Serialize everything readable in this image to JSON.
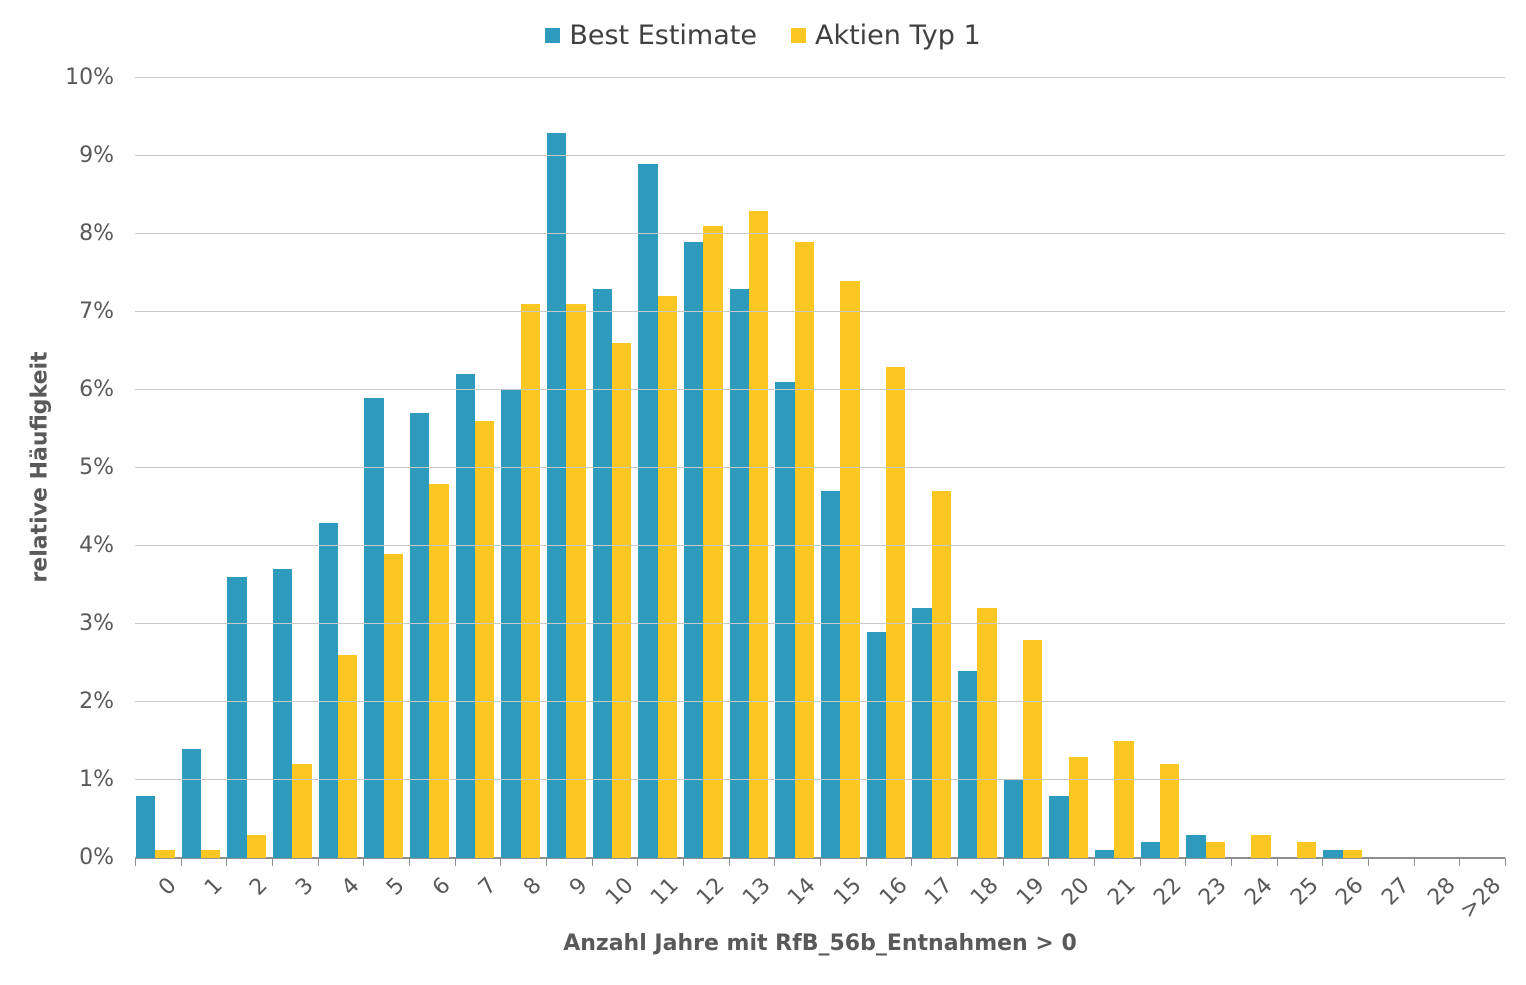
{
  "chart_data": {
    "type": "bar",
    "title": "",
    "xlabel": "Anzahl Jahre mit RfB_56b_Entnahmen > 0",
    "ylabel": "relative Häufigkeit",
    "categories": [
      "0",
      "1",
      "2",
      "3",
      "4",
      "5",
      "6",
      "7",
      "8",
      "9",
      "10",
      "11",
      "12",
      "13",
      "14",
      "15",
      "16",
      "17",
      "18",
      "19",
      "20",
      "21",
      "22",
      "23",
      "24",
      "25",
      "26",
      "27",
      "28",
      ">28"
    ],
    "series": [
      {
        "name": "Best Estimate",
        "color": "#2e9bbc",
        "values": [
          0.8,
          1.4,
          3.6,
          3.7,
          4.3,
          5.9,
          5.7,
          6.2,
          6.0,
          9.3,
          7.3,
          8.9,
          7.9,
          7.3,
          6.1,
          4.7,
          2.9,
          3.2,
          2.4,
          1.0,
          0.8,
          0.1,
          0.2,
          0.3,
          0,
          0,
          0.1,
          0,
          0,
          0
        ]
      },
      {
        "name": "Aktien Typ 1",
        "color": "#fcc723",
        "values": [
          0.1,
          0.1,
          0.3,
          1.2,
          2.6,
          3.9,
          4.8,
          5.6,
          7.1,
          7.1,
          6.6,
          7.2,
          8.1,
          8.3,
          7.9,
          7.4,
          6.3,
          4.7,
          3.2,
          2.8,
          1.3,
          1.5,
          1.2,
          0.2,
          0.3,
          0.2,
          0.1,
          0,
          0,
          0
        ]
      }
    ],
    "ylim": [
      0,
      10
    ],
    "ytick_labels": [
      "0%",
      "1%",
      "2%",
      "3%",
      "4%",
      "5%",
      "6%",
      "7%",
      "8%",
      "9%",
      "10%"
    ],
    "grid": true,
    "legend_position": "top-center",
    "colors": {
      "gridline": "#c9c9c9",
      "axis_line": "#8f8f8f",
      "tick_label": "#595959",
      "axis_title": "#595959",
      "legend_text": "#404040",
      "background": "#ffffff"
    }
  }
}
